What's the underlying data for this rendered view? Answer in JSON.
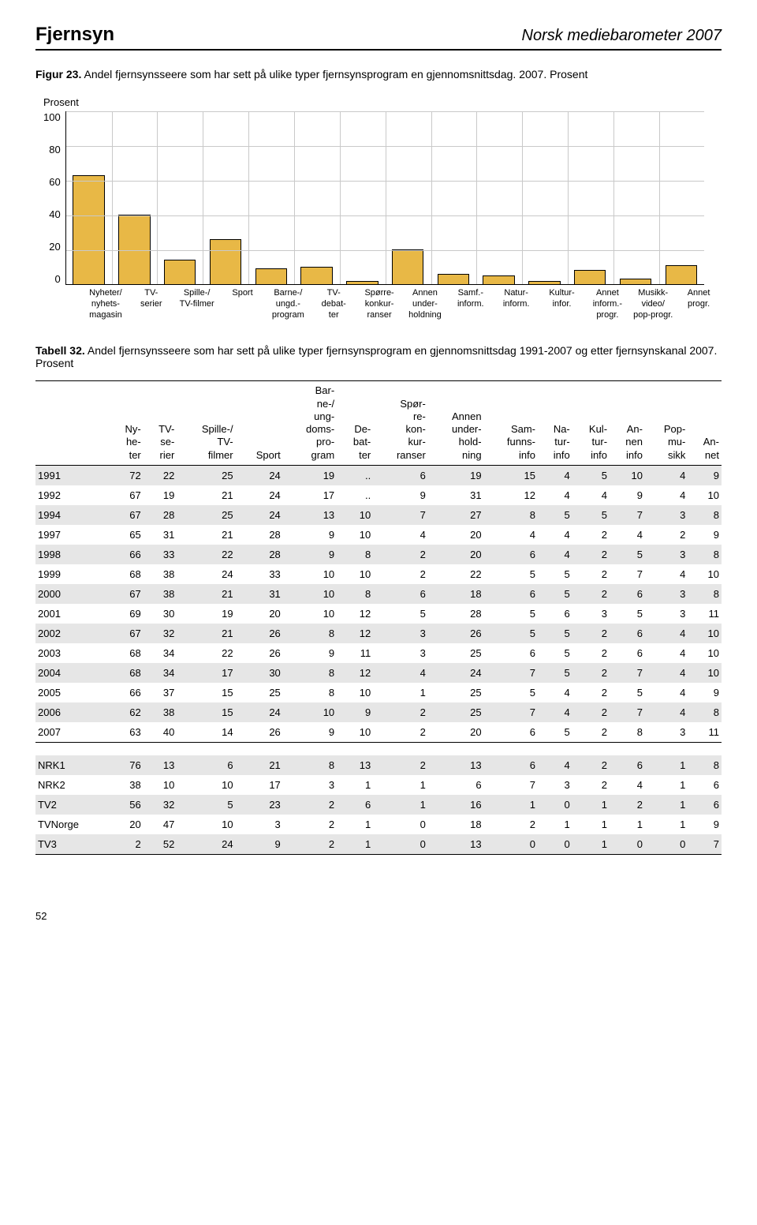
{
  "header": {
    "left": "Fjernsyn",
    "right": "Norsk mediebarometer 2007"
  },
  "figure": {
    "caption_label": "Figur 23.",
    "caption_text": " Andel fjernsynsseere som har sett på ulike typer fjernsynsprogram en gjennomsnittsdag. 2007. Prosent",
    "ylabel": "Prosent",
    "ymax": 100,
    "ytick_step": 20,
    "yticks": [
      "100",
      "80",
      "60",
      "40",
      "20",
      "0"
    ],
    "bar_color": "#e8b846",
    "grid_color": "#c9c9c9",
    "categories": [
      "Nyheter/\nnyhets-\nmagasin",
      "TV-\nserier",
      "Spille-/\nTV-filmer",
      "Sport",
      "Barne-/\nungd.-\nprogram",
      "TV-\ndebat-\nter",
      "Spørre-\nkonkur-\nranser",
      "Annen\nunder-\nholdning",
      "Samf.-\ninform.",
      "Natur-\ninform.",
      "Kultur-\ninfor.",
      "Annet\ninform.-\nprogr.",
      "Musikk-\nvideo/\npop-progr.",
      "Annet\nprogr."
    ],
    "values": [
      63,
      40,
      14,
      26,
      9,
      10,
      2,
      20,
      6,
      5,
      2,
      8,
      3,
      11
    ]
  },
  "table": {
    "caption_label": "Tabell 32.",
    "caption_text": " Andel fjernsynsseere som har sett på ulike typer fjernsynsprogram en gjennomsnittsdag 1991-2007 og etter fjernsynskanal 2007. Prosent",
    "headers": [
      "",
      "Ny-\nhe-\nter",
      "TV-\nse-\nrier",
      "Spille-/\nTV-\nfilmer",
      "Sport",
      "Bar-\nne-/\nung-\ndoms-\npro-\ngram",
      "De-\nbat-\nter",
      "Spør-\nre-\nkon-\nkur-\nranser",
      "Annen\nunder-\nhold-\nning",
      "Sam-\nfunns-\ninfo",
      "Na-\ntur-\ninfo",
      "Kul-\ntur-\ninfo",
      "An-\nnen\ninfo",
      "Pop-\nmu-\nsikk",
      "An-\nnet"
    ],
    "year_rows": [
      {
        "label": "1991",
        "cells": [
          "72",
          "22",
          "25",
          "24",
          "19",
          "..",
          "6",
          "19",
          "15",
          "4",
          "5",
          "10",
          "4",
          "9"
        ]
      },
      {
        "label": "1992",
        "cells": [
          "67",
          "19",
          "21",
          "24",
          "17",
          "..",
          "9",
          "31",
          "12",
          "4",
          "4",
          "9",
          "4",
          "10"
        ]
      },
      {
        "label": "1994",
        "cells": [
          "67",
          "28",
          "25",
          "24",
          "13",
          "10",
          "7",
          "27",
          "8",
          "5",
          "5",
          "7",
          "3",
          "8"
        ]
      },
      {
        "label": "1997",
        "cells": [
          "65",
          "31",
          "21",
          "28",
          "9",
          "10",
          "4",
          "20",
          "4",
          "4",
          "2",
          "4",
          "2",
          "9"
        ]
      },
      {
        "label": "1998",
        "cells": [
          "66",
          "33",
          "22",
          "28",
          "9",
          "8",
          "2",
          "20",
          "6",
          "4",
          "2",
          "5",
          "3",
          "8"
        ]
      },
      {
        "label": "1999",
        "cells": [
          "68",
          "38",
          "24",
          "33",
          "10",
          "10",
          "2",
          "22",
          "5",
          "5",
          "2",
          "7",
          "4",
          "10"
        ]
      },
      {
        "label": "2000",
        "cells": [
          "67",
          "38",
          "21",
          "31",
          "10",
          "8",
          "6",
          "18",
          "6",
          "5",
          "2",
          "6",
          "3",
          "8"
        ]
      },
      {
        "label": "2001",
        "cells": [
          "69",
          "30",
          "19",
          "20",
          "10",
          "12",
          "5",
          "28",
          "5",
          "6",
          "3",
          "5",
          "3",
          "11"
        ]
      },
      {
        "label": "2002",
        "cells": [
          "67",
          "32",
          "21",
          "26",
          "8",
          "12",
          "3",
          "26",
          "5",
          "5",
          "2",
          "6",
          "4",
          "10"
        ]
      },
      {
        "label": "2003",
        "cells": [
          "68",
          "34",
          "22",
          "26",
          "9",
          "11",
          "3",
          "25",
          "6",
          "5",
          "2",
          "6",
          "4",
          "10"
        ]
      },
      {
        "label": "2004",
        "cells": [
          "68",
          "34",
          "17",
          "30",
          "8",
          "12",
          "4",
          "24",
          "7",
          "5",
          "2",
          "7",
          "4",
          "10"
        ]
      },
      {
        "label": "2005",
        "cells": [
          "66",
          "37",
          "15",
          "25",
          "8",
          "10",
          "1",
          "25",
          "5",
          "4",
          "2",
          "5",
          "4",
          "9"
        ]
      },
      {
        "label": "2006",
        "cells": [
          "62",
          "38",
          "15",
          "24",
          "10",
          "9",
          "2",
          "25",
          "7",
          "4",
          "2",
          "7",
          "4",
          "8"
        ]
      },
      {
        "label": "2007",
        "cells": [
          "63",
          "40",
          "14",
          "26",
          "9",
          "10",
          "2",
          "20",
          "6",
          "5",
          "2",
          "8",
          "3",
          "11"
        ]
      }
    ],
    "channel_rows": [
      {
        "label": "NRK1",
        "cells": [
          "76",
          "13",
          "6",
          "21",
          "8",
          "13",
          "2",
          "13",
          "6",
          "4",
          "2",
          "6",
          "1",
          "8"
        ]
      },
      {
        "label": "NRK2",
        "cells": [
          "38",
          "10",
          "10",
          "17",
          "3",
          "1",
          "1",
          "6",
          "7",
          "3",
          "2",
          "4",
          "1",
          "6"
        ]
      },
      {
        "label": "TV2",
        "cells": [
          "56",
          "32",
          "5",
          "23",
          "2",
          "6",
          "1",
          "16",
          "1",
          "0",
          "1",
          "2",
          "1",
          "6"
        ]
      },
      {
        "label": "TVNorge",
        "cells": [
          "20",
          "47",
          "10",
          "3",
          "2",
          "1",
          "0",
          "18",
          "2",
          "1",
          "1",
          "1",
          "1",
          "9"
        ]
      },
      {
        "label": "TV3",
        "cells": [
          "2",
          "52",
          "24",
          "9",
          "2",
          "1",
          "0",
          "13",
          "0",
          "0",
          "1",
          "0",
          "0",
          "7"
        ]
      }
    ]
  },
  "page_number": "52"
}
